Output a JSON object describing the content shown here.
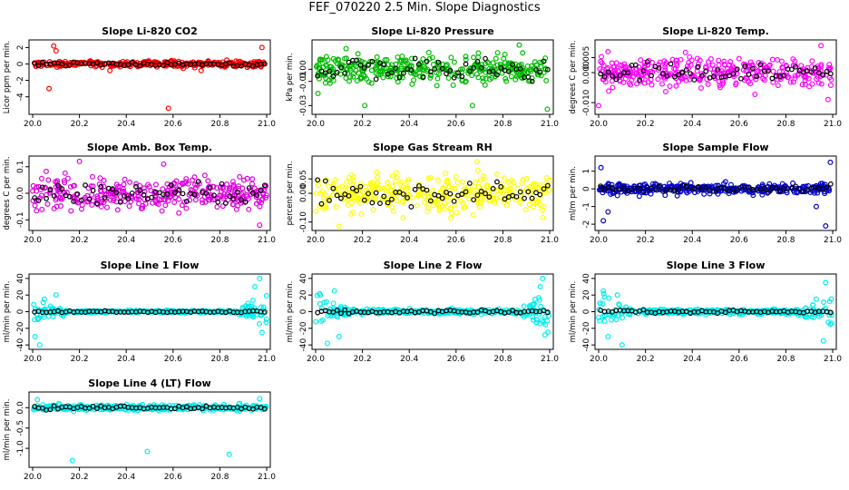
{
  "figure_title": "FEF_070220  2.5 Min. Slope Diagnostics",
  "colors": {
    "black": "#000000"
  },
  "chart_data": [
    {
      "type": "scatter",
      "title": "Slope Li-820 CO2",
      "ylabel": "Licor ppm per min.",
      "color": "#ff0000",
      "xlim": [
        20.0,
        21.0
      ],
      "xticks": [
        "20.0",
        "20.2",
        "20.4",
        "20.6",
        "20.8",
        "21.0"
      ],
      "xtick_values": [
        20.0,
        20.2,
        20.4,
        20.6,
        20.8,
        21.0
      ],
      "ylim": [
        -5.8,
        2.6
      ],
      "yticks": [
        "-4",
        "-2",
        "0",
        "2"
      ],
      "ytick_values": [
        -4,
        -2,
        0,
        2
      ],
      "spread": 0.25,
      "outliers": [
        [
          20.07,
          -3.0
        ],
        [
          20.09,
          2.2
        ],
        [
          20.1,
          1.6
        ],
        [
          20.58,
          -5.4
        ],
        [
          20.98,
          2.0
        ],
        [
          20.33,
          -0.8
        ],
        [
          20.72,
          -0.8
        ]
      ]
    },
    {
      "type": "scatter",
      "title": "Slope Li-820 Pressure",
      "ylabel": "kPa per min.",
      "color": "#00bb00",
      "xlim": [
        20.0,
        21.0
      ],
      "xticks": [
        "20.0",
        "20.2",
        "20.4",
        "20.6",
        "20.8",
        "21.0"
      ],
      "xtick_values": [
        20.0,
        20.2,
        20.4,
        20.6,
        20.8,
        21.0
      ],
      "ylim": [
        -0.035,
        0.022
      ],
      "yticks": [
        "-0.03",
        "-0.01",
        "0.00"
      ],
      "ytick_values": [
        -0.03,
        -0.01,
        0.0
      ],
      "spread": 0.008,
      "outliers": [
        [
          20.01,
          -0.02
        ],
        [
          20.21,
          -0.03
        ],
        [
          20.67,
          -0.03
        ],
        [
          20.87,
          0.02
        ],
        [
          20.99,
          -0.033
        ],
        [
          20.13,
          0.017
        ]
      ]
    },
    {
      "type": "scatter",
      "title": "Slope Li-820 Temp.",
      "ylabel": "degrees C per min.",
      "color": "#ff00ff",
      "xlim": [
        20.0,
        21.0
      ],
      "xticks": [
        "20.0",
        "20.2",
        "20.4",
        "20.6",
        "20.8",
        "21.0"
      ],
      "xtick_values": [
        20.0,
        20.2,
        20.4,
        20.6,
        20.8,
        21.0
      ],
      "ylim": [
        -0.013,
        0.01
      ],
      "yticks": [
        "-0.010",
        "0.000",
        "0.005"
      ],
      "ytick_values": [
        -0.01,
        0.0,
        0.005
      ],
      "spread": 0.0035,
      "outliers": [
        [
          20.95,
          0.009
        ],
        [
          20.0,
          -0.011
        ],
        [
          20.04,
          0.007
        ],
        [
          20.98,
          -0.009
        ]
      ]
    },
    {
      "type": "scatter",
      "title": "Slope Amb. Box Temp.",
      "ylabel": "degrees C per min.",
      "color": "#dd00dd",
      "xlim": [
        20.0,
        21.0
      ],
      "xticks": [
        "20.0",
        "20.2",
        "20.4",
        "20.6",
        "20.8",
        "21.0"
      ],
      "xtick_values": [
        20.0,
        20.2,
        20.4,
        20.6,
        20.8,
        21.0
      ],
      "ylim": [
        -0.13,
        0.13
      ],
      "yticks": [
        "-0.1",
        "0.0",
        "0.1"
      ],
      "ytick_values": [
        -0.1,
        0.0,
        0.1
      ],
      "spread": 0.045,
      "outliers": [
        [
          20.2,
          0.12
        ],
        [
          20.97,
          -0.12
        ],
        [
          20.56,
          0.11
        ]
      ]
    },
    {
      "type": "scatter",
      "title": "Slope Gas Stream RH",
      "ylabel": "percent per min.",
      "color": "#ffff00",
      "xlim": [
        20.0,
        21.0
      ],
      "xticks": [
        "20.0",
        "20.2",
        "20.4",
        "20.6",
        "20.8",
        "21.0"
      ],
      "xtick_values": [
        20.0,
        20.2,
        20.4,
        20.6,
        20.8,
        21.0
      ],
      "ylim": [
        -0.12,
        0.12
      ],
      "yticks": [
        "-0.10",
        "0.00",
        "0.05"
      ],
      "ytick_values": [
        -0.1,
        0.0,
        0.05
      ],
      "spread": 0.045,
      "outliers": [
        [
          20.1,
          -0.115
        ],
        [
          20.69,
          0.11
        ]
      ]
    },
    {
      "type": "scatter",
      "title": "Slope Sample Flow",
      "ylabel": "ml/m per min.",
      "color": "#0000cc",
      "xlim": [
        20.0,
        21.0
      ],
      "xticks": [
        "20.0",
        "20.2",
        "20.4",
        "20.6",
        "20.8",
        "21.0"
      ],
      "xtick_values": [
        20.0,
        20.2,
        20.4,
        20.6,
        20.8,
        21.0
      ],
      "ylim": [
        -2.2,
        1.7
      ],
      "yticks": [
        "-2",
        "-1",
        "0",
        "1"
      ],
      "ytick_values": [
        -2,
        -1,
        0,
        1
      ],
      "spread": 0.2,
      "outliers": [
        [
          20.02,
          -1.8
        ],
        [
          20.97,
          -2.1
        ],
        [
          20.99,
          1.5
        ],
        [
          20.01,
          1.2
        ],
        [
          20.04,
          -1.3
        ],
        [
          20.93,
          -1.0
        ]
      ]
    },
    {
      "type": "scatter",
      "title": "Slope Line 1 Flow",
      "ylabel": "ml/min per min.",
      "color": "#00eeee",
      "xlim": [
        20.0,
        21.0
      ],
      "xticks": [
        "20.0",
        "20.2",
        "20.4",
        "20.6",
        "20.8",
        "21.0"
      ],
      "xtick_values": [
        20.0,
        20.2,
        20.4,
        20.6,
        20.8,
        21.0
      ],
      "ylim": [
        -42,
        42
      ],
      "yticks": [
        "-40",
        "-20",
        "0",
        "20",
        "40"
      ],
      "ytick_values": [
        -40,
        -20,
        0,
        20,
        40
      ],
      "spread": 1.0,
      "outliers": [
        [
          20.03,
          -40
        ],
        [
          20.01,
          -30
        ],
        [
          20.05,
          15
        ],
        [
          20.1,
          20
        ],
        [
          20.13,
          -5
        ],
        [
          20.97,
          40
        ],
        [
          20.95,
          30
        ],
        [
          20.98,
          -25
        ],
        [
          20.92,
          10
        ]
      ]
    },
    {
      "type": "scatter",
      "title": "Slope Line 2 Flow",
      "ylabel": "ml/min per min.",
      "color": "#00eeee",
      "xlim": [
        20.0,
        21.0
      ],
      "xticks": [
        "20.0",
        "20.2",
        "20.4",
        "20.6",
        "20.8",
        "21.0"
      ],
      "xtick_values": [
        20.0,
        20.2,
        20.4,
        20.6,
        20.8,
        21.0
      ],
      "ylim": [
        -42,
        42
      ],
      "yticks": [
        "-40",
        "-20",
        "0",
        "20",
        "40"
      ],
      "ytick_values": [
        -40,
        -20,
        0,
        20,
        40
      ],
      "spread": 2.0,
      "outliers": [
        [
          20.05,
          -38
        ],
        [
          20.02,
          20
        ],
        [
          20.08,
          25
        ],
        [
          20.1,
          -30
        ],
        [
          20.97,
          40
        ],
        [
          20.96,
          30
        ],
        [
          20.98,
          -28
        ],
        [
          20.93,
          -10
        ]
      ]
    },
    {
      "type": "scatter",
      "title": "Slope Line 3 Flow",
      "ylabel": "ml/min per min.",
      "color": "#00eeee",
      "xlim": [
        20.0,
        21.0
      ],
      "xticks": [
        "20.0",
        "20.2",
        "20.4",
        "20.6",
        "20.8",
        "21.0"
      ],
      "xtick_values": [
        20.0,
        20.2,
        20.4,
        20.6,
        20.8,
        21.0
      ],
      "ylim": [
        -42,
        42
      ],
      "yticks": [
        "-40",
        "-20",
        "0",
        "20",
        "40"
      ],
      "ytick_values": [
        -40,
        -20,
        0,
        20,
        40
      ],
      "spread": 2.0,
      "outliers": [
        [
          20.02,
          25
        ],
        [
          20.04,
          -30
        ],
        [
          20.1,
          -40
        ],
        [
          20.08,
          20
        ],
        [
          20.97,
          35
        ],
        [
          20.96,
          -35
        ],
        [
          20.99,
          -15
        ],
        [
          20.93,
          15
        ]
      ]
    },
    {
      "type": "scatter",
      "title": "Slope Line 4 (LT) Flow",
      "ylabel": "ml/min per min.",
      "color": "#00eeee",
      "xlim": [
        20.0,
        21.0
      ],
      "xticks": [
        "20.0",
        "20.2",
        "20.4",
        "20.6",
        "20.8",
        "21.0"
      ],
      "xtick_values": [
        20.0,
        20.2,
        20.4,
        20.6,
        20.8,
        21.0
      ],
      "ylim": [
        -1.4,
        0.32
      ],
      "yticks": [
        "-1.0",
        "-0.5",
        "0.0"
      ],
      "ytick_values": [
        -1.0,
        -0.5,
        0.0
      ],
      "spread": 0.05,
      "outliers": [
        [
          20.17,
          -1.3
        ],
        [
          20.49,
          -1.08
        ],
        [
          20.84,
          -1.15
        ],
        [
          20.97,
          0.22
        ],
        [
          20.02,
          0.2
        ]
      ]
    }
  ]
}
